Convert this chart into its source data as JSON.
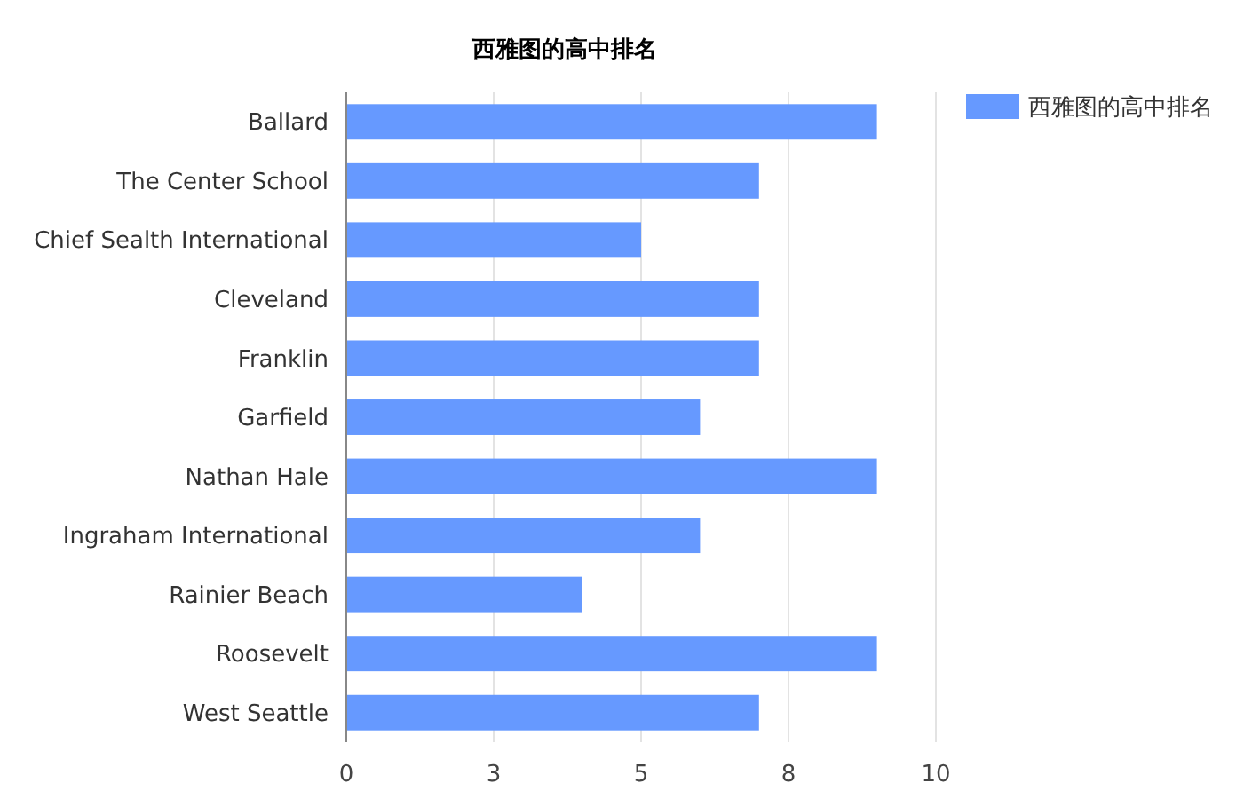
{
  "chart_data": {
    "type": "bar",
    "orientation": "horizontal",
    "title": "西雅图的高中排名",
    "categories": [
      "Ballard",
      "The Center School",
      "Chief Sealth International",
      "Cleveland",
      "Franklin",
      "Garfield",
      "Nathan Hale",
      "Ingraham International",
      "Rainier Beach",
      "Roosevelt",
      "West Seattle"
    ],
    "series": [
      {
        "name": "西雅图的高中排名",
        "color": "#6699ff",
        "values": [
          9,
          7,
          5,
          7,
          7,
          6,
          9,
          6,
          4,
          9,
          7
        ]
      }
    ],
    "xlim": [
      0,
      10
    ],
    "xticks": [
      0,
      {
        "value": 2.5,
        "label": "3"
      },
      5,
      {
        "value": 7.5,
        "label": "8"
      },
      10
    ],
    "grid": "x",
    "legend": "top right"
  }
}
